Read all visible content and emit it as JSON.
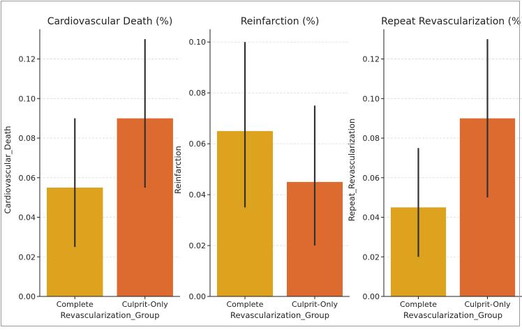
{
  "chart_data": [
    {
      "type": "bar",
      "title": "Cardiovascular Death (%)",
      "xlabel": "Revascularization_Group",
      "ylabel": "Cardiovascular_Death",
      "categories": [
        "Complete",
        "Culprit-Only"
      ],
      "values": [
        0.055,
        0.09
      ],
      "error_low": [
        0.025,
        0.055
      ],
      "error_high": [
        0.09,
        0.13
      ],
      "colors": [
        "#dda21e",
        "#dd6b30"
      ],
      "ylim": [
        0,
        0.135
      ],
      "yticks": [
        0.0,
        0.02,
        0.04,
        0.06,
        0.08,
        0.1,
        0.12
      ],
      "ytick_labels": [
        "0.00",
        "0.02",
        "0.04",
        "0.06",
        "0.08",
        "0.10",
        "0.12"
      ],
      "grid": "y"
    },
    {
      "type": "bar",
      "title": "Reinfarction (%)",
      "xlabel": "Revascularization_Group",
      "ylabel": "Reinfarction",
      "categories": [
        "Complete",
        "Culprit-Only"
      ],
      "values": [
        0.065,
        0.045
      ],
      "error_low": [
        0.035,
        0.02
      ],
      "error_high": [
        0.1,
        0.075
      ],
      "colors": [
        "#dda21e",
        "#dd6b30"
      ],
      "ylim": [
        0,
        0.105
      ],
      "yticks": [
        0.0,
        0.02,
        0.04,
        0.06,
        0.08,
        0.1
      ],
      "ytick_labels": [
        "0.00",
        "0.02",
        "0.04",
        "0.06",
        "0.08",
        "0.10"
      ],
      "grid": "y"
    },
    {
      "type": "bar",
      "title": "Repeat Revascularization (%)",
      "xlabel": "Revascularization_Group",
      "ylabel": "Repeat_Revascularization",
      "categories": [
        "Complete",
        "Culprit-Only"
      ],
      "values": [
        0.045,
        0.09
      ],
      "error_low": [
        0.02,
        0.05
      ],
      "error_high": [
        0.075,
        0.13
      ],
      "colors": [
        "#dda21e",
        "#dd6b30"
      ],
      "ylim": [
        0,
        0.135
      ],
      "yticks": [
        0.0,
        0.02,
        0.04,
        0.06,
        0.08,
        0.1,
        0.12
      ],
      "ytick_labels": [
        "0.00",
        "0.02",
        "0.04",
        "0.06",
        "0.08",
        "0.10",
        "0.12"
      ],
      "grid": "y"
    }
  ]
}
